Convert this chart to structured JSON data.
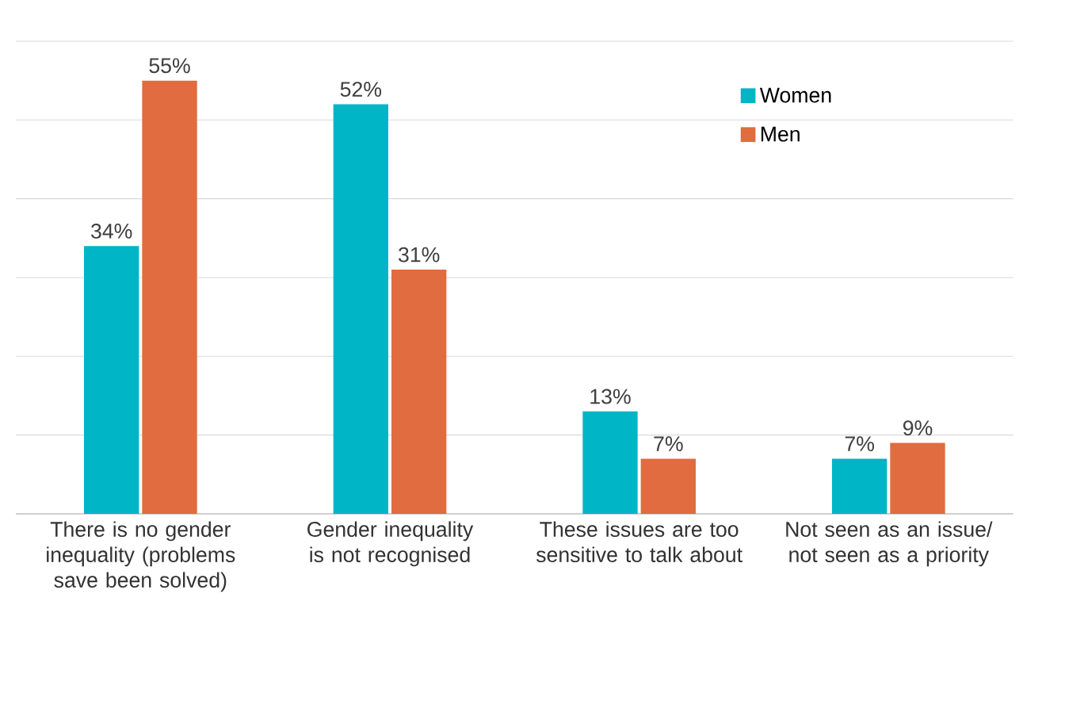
{
  "chart_data": {
    "type": "bar",
    "categories": [
      "There is no gender inequality (problems save been solved)",
      "Gender inequality is not recognised",
      "These issues are too sensitive to talk about",
      "Not seen as an issue/ not seen as a priority"
    ],
    "series": [
      {
        "name": "Women",
        "color": "#00b5c6",
        "values": [
          34,
          52,
          13,
          7
        ],
        "value_labels": [
          "34%",
          "52%",
          "13%",
          "7%"
        ]
      },
      {
        "name": "Men",
        "color": "#e06c3f",
        "values": [
          55,
          31,
          7,
          9
        ],
        "value_labels": [
          "55%",
          "31%",
          "7%",
          "9%"
        ]
      }
    ],
    "ylim": [
      0,
      60
    ],
    "yticks": [
      {
        "value": 0,
        "label": null
      },
      {
        "value": 10,
        "label": null
      },
      {
        "value": 20,
        "label": null
      },
      {
        "value": 30,
        "label": null
      },
      {
        "value": 40,
        "label": null
      },
      {
        "value": 50,
        "label": null
      },
      {
        "value": 60,
        "label": null
      }
    ],
    "tick_labels": "x",
    "grid": "y",
    "legend": "top right"
  }
}
